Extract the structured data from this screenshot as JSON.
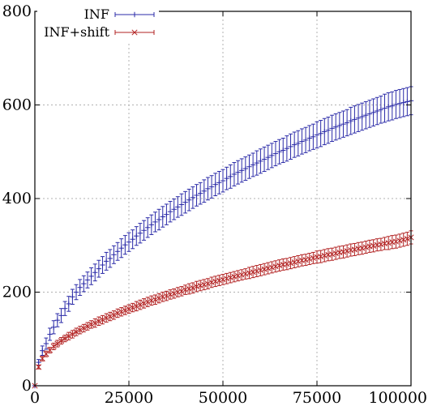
{
  "chart_data": {
    "type": "scatter",
    "title": "",
    "xlabel": "",
    "ylabel": "",
    "xlim": [
      0,
      100000
    ],
    "ylim": [
      0,
      800
    ],
    "x_ticks": [
      0,
      25000,
      50000,
      75000,
      100000
    ],
    "y_ticks": [
      0,
      200,
      400,
      600,
      800
    ],
    "x_tick_labels": [
      "0",
      "25000",
      "50000",
      "75000",
      "100000"
    ],
    "y_tick_labels": [
      "0",
      "200",
      "400",
      "600",
      "800"
    ],
    "grid": true,
    "legend_position": "top-left",
    "x": [
      0,
      1000,
      2000,
      3000,
      4000,
      5000,
      6000,
      7000,
      8000,
      9000,
      10000,
      11000,
      12000,
      13000,
      14000,
      15000,
      16000,
      17000,
      18000,
      19000,
      20000,
      21000,
      22000,
      23000,
      24000,
      25000,
      26000,
      27000,
      28000,
      29000,
      30000,
      31000,
      32000,
      33000,
      34000,
      35000,
      36000,
      37000,
      38000,
      39000,
      40000,
      41000,
      42000,
      43000,
      44000,
      45000,
      46000,
      47000,
      48000,
      49000,
      50000,
      51000,
      52000,
      53000,
      54000,
      55000,
      56000,
      57000,
      58000,
      59000,
      60000,
      61000,
      62000,
      63000,
      64000,
      65000,
      66000,
      67000,
      68000,
      69000,
      70000,
      71000,
      72000,
      73000,
      74000,
      75000,
      76000,
      77000,
      78000,
      79000,
      80000,
      81000,
      82000,
      83000,
      84000,
      85000,
      86000,
      87000,
      88000,
      89000,
      90000,
      91000,
      92000,
      93000,
      94000,
      95000,
      96000,
      97000,
      98000,
      99000,
      100000
    ],
    "series": [
      {
        "name": "INF",
        "color": "#2b2ba8",
        "marker": "plus",
        "values": [
          0,
          50,
          75,
          90,
          110,
          125,
          140,
          150,
          165,
          175,
          190,
          200,
          210,
          218,
          226,
          234,
          242,
          250,
          258,
          266,
          272,
          280,
          287,
          294,
          301,
          307,
          313,
          320,
          326,
          332,
          338,
          344,
          350,
          355,
          361,
          366,
          372,
          377,
          382,
          387,
          392,
          397,
          402,
          407,
          411,
          416,
          421,
          425,
          430,
          434,
          438,
          443,
          447,
          452,
          456,
          460,
          464,
          468,
          472,
          476,
          480,
          484,
          488,
          492,
          496,
          500,
          503,
          507,
          511,
          515,
          518,
          522,
          525,
          529,
          532,
          536,
          539,
          543,
          546,
          550,
          553,
          556,
          559,
          562,
          566,
          569,
          572,
          575,
          578,
          581,
          584,
          587,
          590,
          593,
          596,
          598,
          601,
          603,
          605,
          607,
          609
        ],
        "errors": [
          0,
          6,
          10,
          12,
          13,
          14,
          14,
          15,
          15,
          16,
          16,
          16,
          17,
          17,
          17,
          18,
          18,
          18,
          18,
          19,
          19,
          19,
          19,
          20,
          20,
          20,
          20,
          20,
          21,
          21,
          21,
          21,
          21,
          22,
          22,
          22,
          22,
          22,
          22,
          23,
          23,
          23,
          23,
          23,
          23,
          24,
          24,
          24,
          24,
          24,
          24,
          24,
          25,
          25,
          25,
          25,
          25,
          25,
          25,
          26,
          26,
          26,
          26,
          26,
          26,
          26,
          26,
          27,
          27,
          27,
          27,
          27,
          27,
          27,
          27,
          28,
          28,
          28,
          28,
          28,
          28,
          28,
          28,
          28,
          29,
          29,
          29,
          29,
          29,
          29,
          29,
          29,
          29,
          30,
          30,
          30,
          30,
          30,
          30,
          30,
          30
        ]
      },
      {
        "name": "INF+shift",
        "color": "#b22222",
        "marker": "cross",
        "values": [
          0,
          40,
          58,
          68,
          76,
          84,
          90,
          96,
          101,
          106,
          110,
          115,
          119,
          123,
          127,
          131,
          134,
          138,
          141,
          145,
          148,
          151,
          155,
          158,
          161,
          164,
          167,
          170,
          173,
          176,
          179,
          182,
          184,
          187,
          190,
          192,
          195,
          197,
          200,
          202,
          205,
          207,
          209,
          212,
          214,
          216,
          218,
          221,
          223,
          225,
          227,
          229,
          231,
          233,
          235,
          237,
          239,
          241,
          243,
          245,
          247,
          249,
          251,
          253,
          255,
          257,
          259,
          260,
          262,
          264,
          266,
          268,
          269,
          271,
          273,
          275,
          276,
          278,
          280,
          281,
          283,
          285,
          286,
          288,
          290,
          291,
          293,
          294,
          296,
          298,
          299,
          301,
          302,
          304,
          305,
          307,
          308,
          310,
          312,
          314,
          317
        ],
        "errors": [
          0,
          4,
          5,
          6,
          6,
          7,
          7,
          7,
          7,
          8,
          8,
          8,
          8,
          8,
          8,
          8,
          9,
          9,
          9,
          9,
          9,
          9,
          9,
          9,
          9,
          9,
          9,
          10,
          10,
          10,
          10,
          10,
          10,
          10,
          10,
          10,
          10,
          10,
          10,
          10,
          10,
          11,
          11,
          11,
          11,
          11,
          11,
          11,
          11,
          11,
          11,
          11,
          11,
          11,
          11,
          11,
          11,
          12,
          12,
          12,
          12,
          12,
          12,
          12,
          12,
          12,
          12,
          12,
          12,
          12,
          12,
          12,
          12,
          12,
          12,
          13,
          13,
          13,
          13,
          13,
          13,
          13,
          13,
          13,
          13,
          13,
          13,
          13,
          13,
          13,
          13,
          13,
          13,
          13,
          14,
          14,
          14,
          14,
          14,
          14,
          14
        ]
      }
    ]
  }
}
